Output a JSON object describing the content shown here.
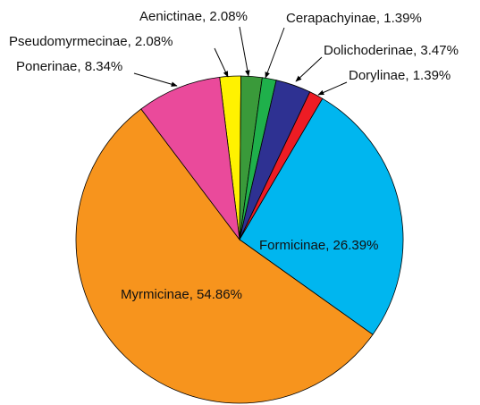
{
  "chart_data": {
    "type": "pie",
    "categories": [
      "Pseudomyrmecinae",
      "Aenictinae",
      "Cerapachyinae",
      "Dolichoderinae",
      "Dorylinae",
      "Formicinae",
      "Myrmicinae",
      "Ponerinae"
    ],
    "values": [
      2.08,
      2.08,
      1.39,
      3.47,
      1.39,
      26.39,
      54.86,
      8.34
    ],
    "value_labels": [
      "2.08%",
      "2.08%",
      "1.39%",
      "3.47%",
      "1.39%",
      "26.39%",
      "54.86%",
      "8.34%"
    ],
    "label_separator": ", ",
    "colors": [
      "#fff200",
      "#3a9a3a",
      "#1fb04b",
      "#2e3192",
      "#ed1c24",
      "#00b6ef",
      "#f7941d",
      "#ea4a9b"
    ]
  }
}
